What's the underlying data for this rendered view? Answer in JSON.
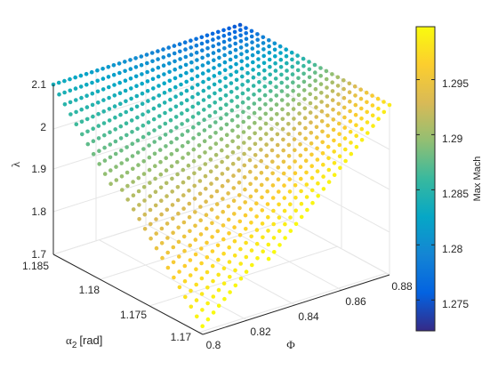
{
  "chart_data": {
    "type": "scatter",
    "title": "",
    "view": "3d",
    "grid": true,
    "axes": {
      "x": {
        "label": "Φ",
        "range": [
          0.8,
          0.88
        ],
        "ticks": [
          "0.8",
          "0.82",
          "0.84",
          "0.86",
          "0.88"
        ]
      },
      "y": {
        "label_symbol": "α",
        "label_sub": "2",
        "label_unit": "[rad]",
        "range": [
          1.165,
          1.185
        ],
        "ticks": [
          "1.17",
          "1.175",
          "1.18",
          "1.185"
        ]
      },
      "z": {
        "label": "λ",
        "range": [
          1.7,
          2.1
        ],
        "ticks": [
          "1.7",
          "1.8",
          "1.9",
          "2",
          "2.1"
        ]
      }
    },
    "colorbar": {
      "label": "Max Mach",
      "range": [
        1.2722,
        1.2998
      ],
      "ticks": [
        "1.275",
        "1.28",
        "1.285",
        "1.29",
        "1.295"
      ],
      "placement": "right",
      "colormap": "parula"
    },
    "point_cloud": {
      "description_marker": "filled dots",
      "phi_values": [
        0.8,
        0.88
      ],
      "alpha2_values": [
        1.166,
        1.185
      ],
      "lambda_values": [
        1.7,
        2.1
      ],
      "mach_min_corner": {
        "phi": 0.88,
        "alpha2": 1.185,
        "lambda": 2.1,
        "mach": 1.2725
      },
      "mach_max_corner": {
        "phi": 0.8,
        "alpha2": 1.166,
        "lambda": 1.75,
        "mach": 1.2995
      }
    }
  },
  "colors": {
    "background": "#ffffff",
    "axis": "#262626",
    "grid": "#e6e6e6"
  }
}
